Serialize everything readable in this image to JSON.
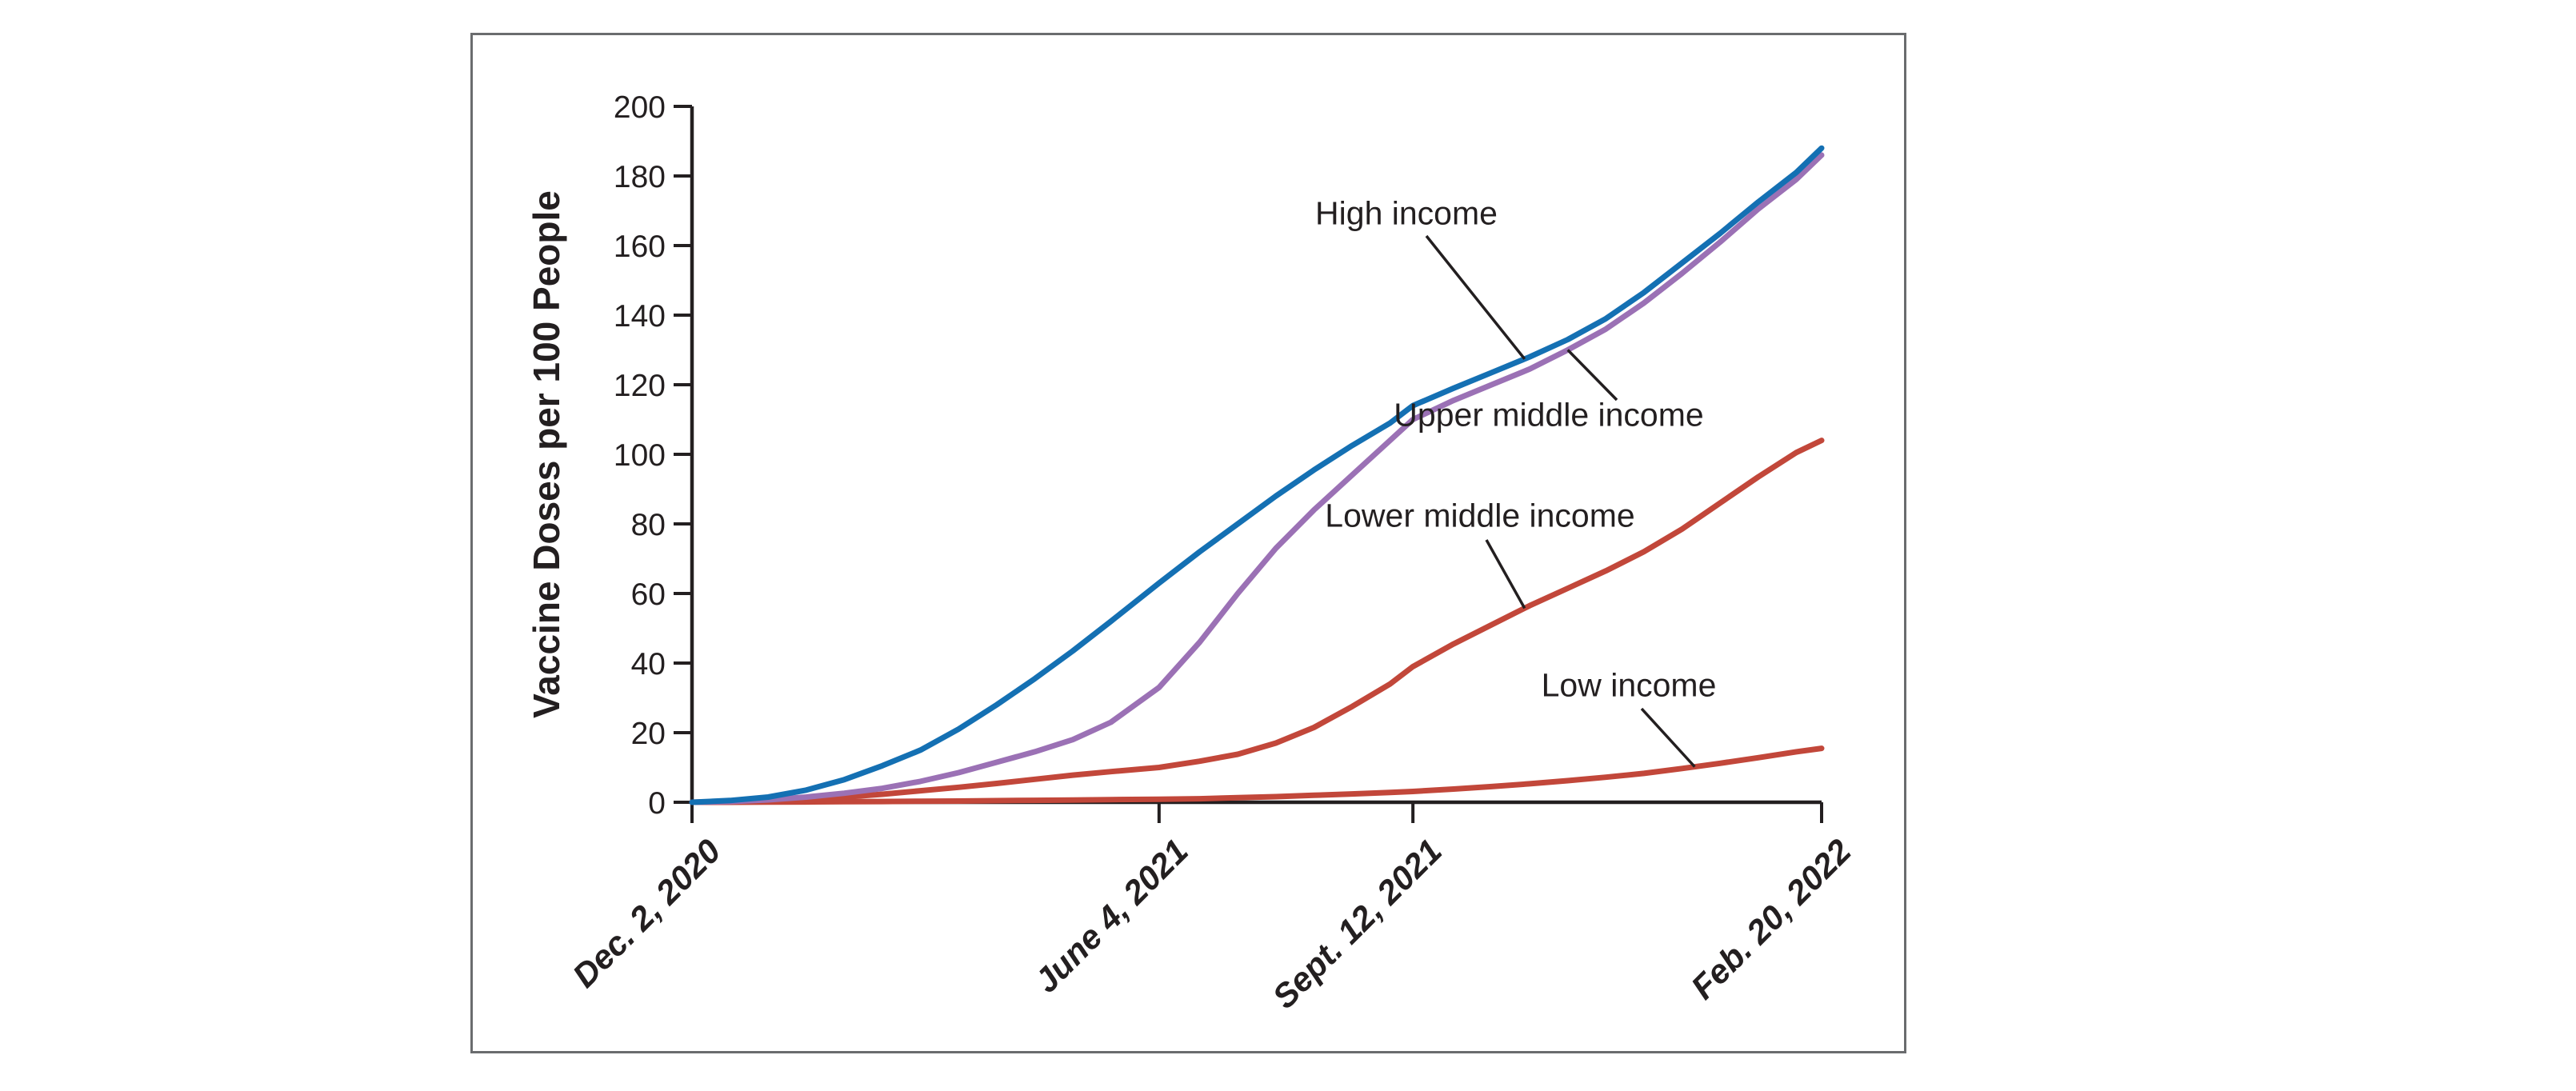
{
  "figure": {
    "background": "#ffffff",
    "border_color": "#6a6c6e",
    "axis_color": "#231f20",
    "text_color": "#231f20"
  },
  "chart_data": {
    "type": "line",
    "title": "",
    "xlabel": "",
    "ylabel": "Vaccine Doses per 100 People",
    "ylim": [
      0,
      200
    ],
    "grid": false,
    "legend_position": "inline-annotations",
    "y_ticks": [
      0,
      20,
      40,
      60,
      80,
      100,
      120,
      140,
      160,
      180,
      200
    ],
    "x_unit": "days since Dec. 2, 2020",
    "x_ticks": [
      {
        "label": "Dec. 2, 2020",
        "day": 0
      },
      {
        "label": "June 4, 2021",
        "day": 184
      },
      {
        "label": "Sept. 12, 2021",
        "day": 284
      },
      {
        "label": "Feb. 20, 2022",
        "day": 445
      }
    ],
    "x": [
      0,
      15,
      30,
      45,
      60,
      75,
      90,
      105,
      120,
      135,
      150,
      165,
      184,
      200,
      215,
      230,
      245,
      260,
      275,
      284,
      300,
      315,
      330,
      345,
      360,
      375,
      390,
      405,
      420,
      435,
      445
    ],
    "series": [
      {
        "name": "High income",
        "color": "#1470b3",
        "values": [
          0,
          0.5,
          1.5,
          3.5,
          6.5,
          10.5,
          15,
          21,
          28,
          35.5,
          43.5,
          52,
          63,
          72,
          80,
          88,
          95.5,
          102.5,
          109,
          114,
          119,
          123.5,
          128,
          133,
          139,
          146.5,
          155,
          163.5,
          172.5,
          181,
          188
        ]
      },
      {
        "name": "Upper middle income",
        "color": "#9b71b5",
        "values": [
          0,
          0.2,
          0.7,
          1.5,
          2.6,
          4,
          6,
          8.5,
          11.5,
          14.5,
          18,
          23,
          33,
          46,
          60,
          73,
          84,
          94,
          104,
          110,
          115.5,
          120,
          124.5,
          130,
          136,
          143.5,
          152,
          161,
          170.5,
          179,
          186
        ]
      },
      {
        "name": "Lower middle income",
        "color": "#c2473a",
        "values": [
          0,
          0.1,
          0.3,
          0.8,
          1.5,
          2.3,
          3.3,
          4.3,
          5.4,
          6.6,
          7.8,
          8.8,
          10,
          11.8,
          13.8,
          17,
          21.5,
          27.5,
          34,
          39,
          45.5,
          51,
          56.5,
          61.5,
          66.5,
          72,
          78.5,
          86,
          93.5,
          100.5,
          104
        ]
      },
      {
        "name": "Low income",
        "color": "#c2473a",
        "values": [
          0,
          0,
          0.05,
          0.1,
          0.15,
          0.2,
          0.3,
          0.35,
          0.45,
          0.55,
          0.65,
          0.75,
          0.85,
          1,
          1.3,
          1.6,
          2,
          2.4,
          2.8,
          3.1,
          3.8,
          4.5,
          5.3,
          6.2,
          7.2,
          8.3,
          9.7,
          11.2,
          12.8,
          14.5,
          15.5
        ]
      }
    ],
    "annotations": [
      {
        "label": "High income",
        "series": 0,
        "text_center": {
          "x": 1758,
          "y": 267
        },
        "leader": {
          "x1": 1783,
          "y1": 295,
          "day": 328
        }
      },
      {
        "label": "Upper middle income",
        "series": 1,
        "text_center": {
          "x": 1936,
          "y": 519
        },
        "leader": {
          "x1": 2021,
          "y1": 500,
          "day": 345
        }
      },
      {
        "label": "Lower middle income",
        "series": 2,
        "text_center": {
          "x": 1850,
          "y": 645
        },
        "leader": {
          "x1": 1858,
          "y1": 675,
          "day": 328
        }
      },
      {
        "label": "Low income",
        "series": 3,
        "text_center": {
          "x": 2036,
          "y": 857
        },
        "leader": {
          "x1": 2052,
          "y1": 886,
          "day": 395
        }
      }
    ]
  }
}
